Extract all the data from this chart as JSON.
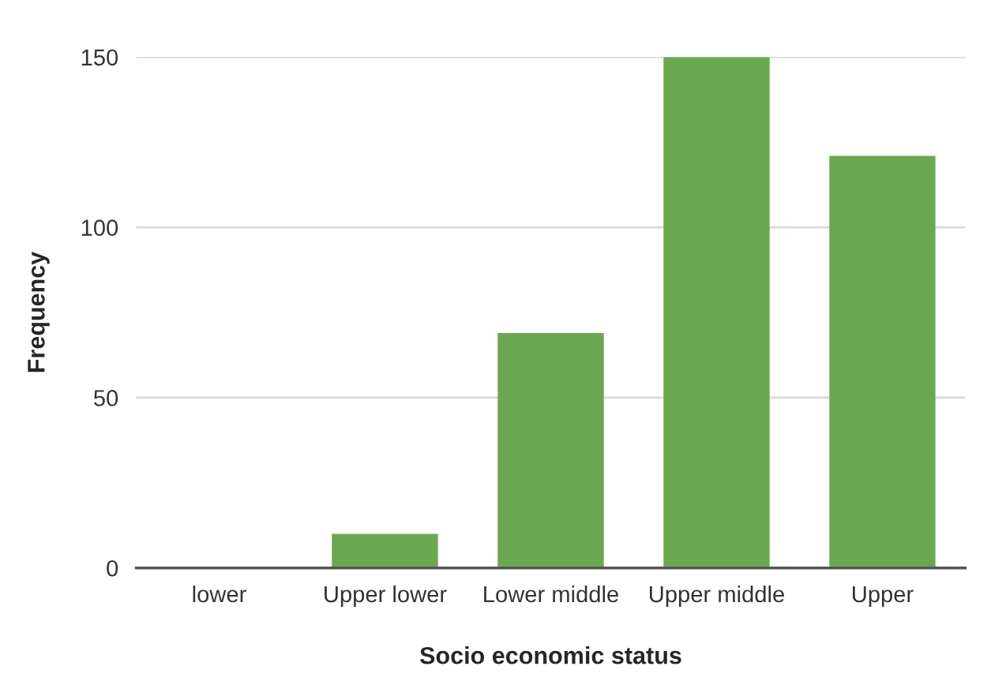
{
  "chart_data": {
    "type": "bar",
    "xlabel": "Socio economic status",
    "ylabel": "Frequency",
    "categories": [
      "lower",
      "Upper lower",
      "Lower middle",
      "Upper middle",
      "Upper"
    ],
    "values": [
      0,
      10,
      69,
      150,
      121
    ],
    "color": "#6aa84f",
    "ylim": [
      0,
      150
    ],
    "yticks": [
      0,
      50,
      100,
      150
    ],
    "grid": "y",
    "legend": false
  }
}
